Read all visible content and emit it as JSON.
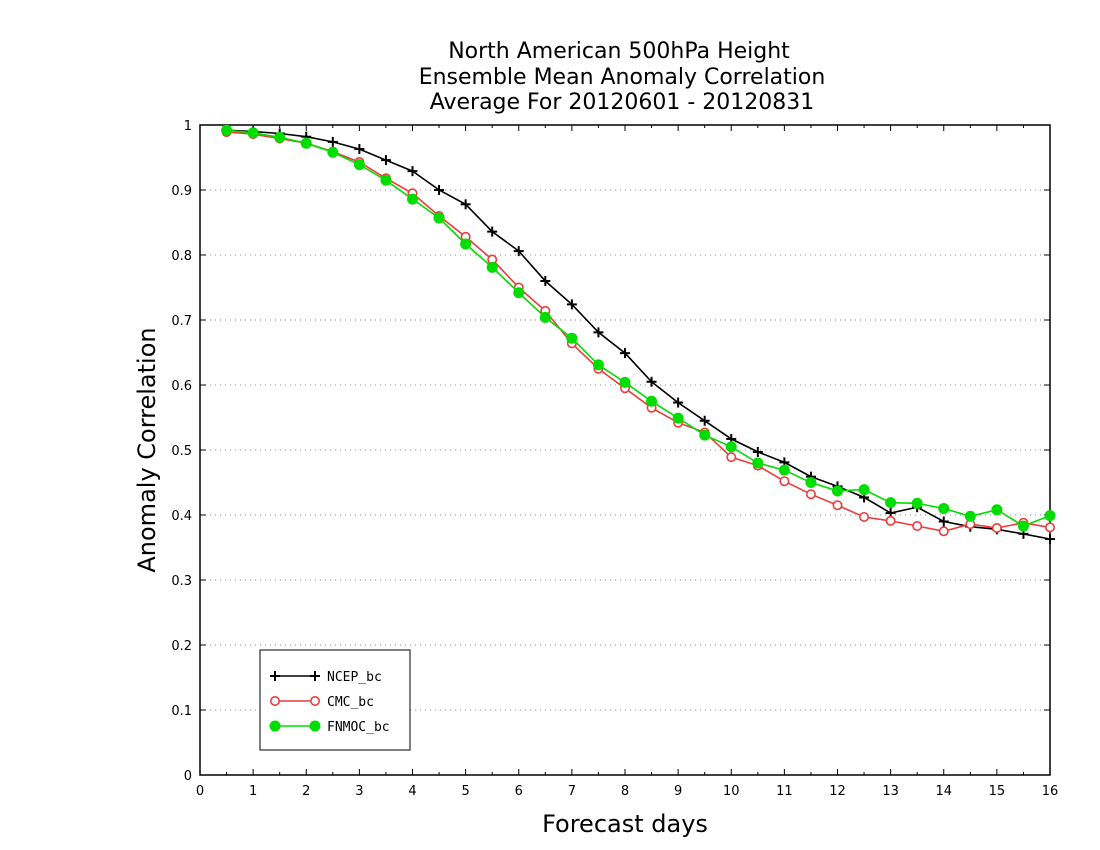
{
  "chart_data": {
    "type": "line",
    "title_lines": [
      "North American 500hPa Height",
      "Ensemble Mean Anomaly Correlation",
      "Average For 20120601 - 20120831"
    ],
    "xlabel": "Forecast days",
    "ylabel": "Anomaly Correlation",
    "xlim": [
      0,
      16
    ],
    "ylim": [
      0,
      1
    ],
    "x_ticks": [
      "0",
      "1",
      "2",
      "3",
      "4",
      "5",
      "6",
      "7",
      "8",
      "9",
      "10",
      "11",
      "12",
      "13",
      "14",
      "15",
      "16"
    ],
    "y_ticks": [
      "0",
      "0.1",
      "0.2",
      "0.3",
      "0.4",
      "0.5",
      "0.6",
      "0.7",
      "0.8",
      "0.9",
      "1"
    ],
    "grid": "horizontal dotted",
    "legend_position": "bottom-left",
    "x": [
      0.5,
      1,
      1.5,
      2,
      2.5,
      3,
      3.5,
      4,
      4.5,
      5,
      5.5,
      6,
      6.5,
      7,
      7.5,
      8,
      8.5,
      9,
      9.5,
      10,
      10.5,
      11,
      11.5,
      12,
      12.5,
      13,
      13.5,
      14,
      14.5,
      15,
      15.5,
      16
    ],
    "series": [
      {
        "name": "NCEP_bc",
        "color": "#000000",
        "marker": "plus",
        "values": [
          0.992,
          0.99,
          0.987,
          0.982,
          0.974,
          0.963,
          0.946,
          0.929,
          0.9,
          0.878,
          0.836,
          0.806,
          0.76,
          0.724,
          0.681,
          0.649,
          0.605,
          0.573,
          0.545,
          0.517,
          0.497,
          0.481,
          0.459,
          0.444,
          0.427,
          0.403,
          0.412,
          0.39,
          0.382,
          0.378,
          0.371,
          0.363
        ]
      },
      {
        "name": "CMC_bc",
        "color": "#ee3b3b",
        "marker": "open-circle",
        "values": [
          0.989,
          0.986,
          0.979,
          0.972,
          0.959,
          0.943,
          0.918,
          0.895,
          0.86,
          0.828,
          0.793,
          0.75,
          0.714,
          0.664,
          0.625,
          0.595,
          0.565,
          0.542,
          0.527,
          0.489,
          0.476,
          0.452,
          0.432,
          0.415,
          0.397,
          0.391,
          0.383,
          0.375,
          0.386,
          0.38,
          0.388,
          0.381
        ]
      },
      {
        "name": "FNMOC_bc",
        "color": "#00dd00",
        "marker": "filled-circle",
        "values": [
          0.992,
          0.988,
          0.981,
          0.972,
          0.958,
          0.939,
          0.915,
          0.886,
          0.857,
          0.817,
          0.781,
          0.742,
          0.704,
          0.672,
          0.631,
          0.604,
          0.575,
          0.549,
          0.523,
          0.505,
          0.48,
          0.469,
          0.45,
          0.437,
          0.439,
          0.419,
          0.418,
          0.41,
          0.398,
          0.408,
          0.383,
          0.399
        ]
      }
    ]
  }
}
